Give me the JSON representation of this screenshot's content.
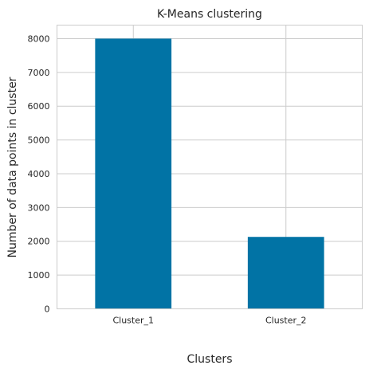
{
  "chart_data": {
    "type": "bar",
    "title": "K-Means clustering",
    "xlabel": "Clusters",
    "ylabel": "Number of data points in cluster",
    "categories": [
      "Cluster_1",
      "Cluster_2"
    ],
    "values": [
      8000,
      2130
    ],
    "ylim": [
      0,
      8400
    ],
    "yticks": [
      0,
      1000,
      2000,
      3000,
      4000,
      5000,
      6000,
      7000,
      8000
    ],
    "grid": true,
    "bar_color": "#0173a5"
  }
}
